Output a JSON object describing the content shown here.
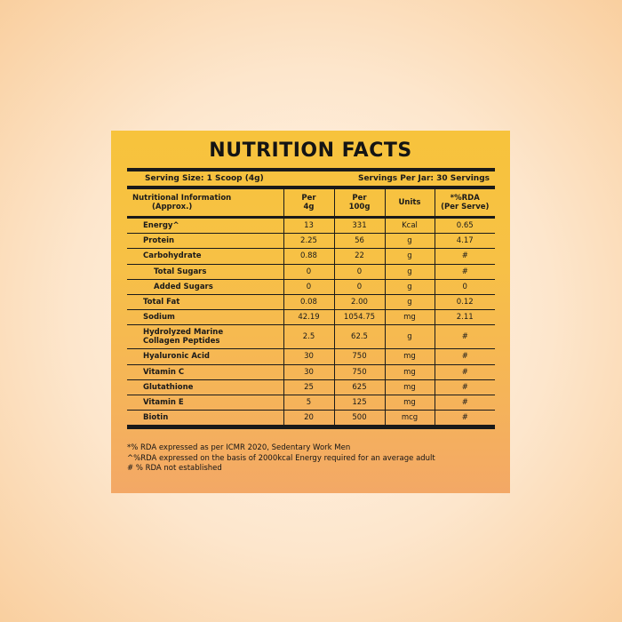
{
  "title": "NUTRITION FACTS",
  "serving_size": "Serving Size: 1 Scoop (4g)",
  "servings_per_jar": "Servings Per Jar: 30 Servings",
  "headers": {
    "name_line1": "Nutritional Information",
    "name_line2": "(Approx.)",
    "per4_line1": "Per",
    "per4_line2": "4g",
    "per100_line1": "Per",
    "per100_line2": "100g",
    "units": "Units",
    "rda_line1": "*%RDA",
    "rda_line2": "(Per Serve)"
  },
  "rows": [
    {
      "name": "Energy^",
      "per4g": "13",
      "per100g": "331",
      "unit": "Kcal",
      "rda": "0.65"
    },
    {
      "name": "Protein",
      "per4g": "2.25",
      "per100g": "56",
      "unit": "g",
      "rda": "4.17"
    },
    {
      "name": "Carbohydrate",
      "per4g": "0.88",
      "per100g": "22",
      "unit": "g",
      "rda": "#"
    },
    {
      "name": "Total Sugars",
      "per4g": "0",
      "per100g": "0",
      "unit": "g",
      "rda": "#"
    },
    {
      "name": "Added Sugars",
      "per4g": "0",
      "per100g": "0",
      "unit": "g",
      "rda": "0"
    },
    {
      "name": "Total Fat",
      "per4g": "0.08",
      "per100g": "2.00",
      "unit": "g",
      "rda": "0.12"
    },
    {
      "name": "Sodium",
      "per4g": "42.19",
      "per100g": "1054.75",
      "unit": "mg",
      "rda": "2.11"
    },
    {
      "name_line1": "Hydrolyzed Marine",
      "name_line2": "Collagen Peptides",
      "per4g": "2.5",
      "per100g": "62.5",
      "unit": "g",
      "rda": "#"
    },
    {
      "name": "Hyaluronic Acid",
      "per4g": "30",
      "per100g": "750",
      "unit": "mg",
      "rda": "#"
    },
    {
      "name": "Vitamin C",
      "per4g": "30",
      "per100g": "750",
      "unit": "mg",
      "rda": "#"
    },
    {
      "name": "Glutathione",
      "per4g": "25",
      "per100g": "625",
      "unit": "mg",
      "rda": "#"
    },
    {
      "name": "Vitamin E",
      "per4g": "5",
      "per100g": "125",
      "unit": "mg",
      "rda": "#"
    },
    {
      "name": "Biotin",
      "per4g": "20",
      "per100g": "500",
      "unit": "mcg",
      "rda": "#"
    }
  ],
  "footnotes": [
    "*% RDA expressed as per ICMR 2020, Sedentary Work Men",
    "^%RDA expressed on the basis of 2000kcal Energy required for an average adult",
    "# % RDA not established"
  ]
}
